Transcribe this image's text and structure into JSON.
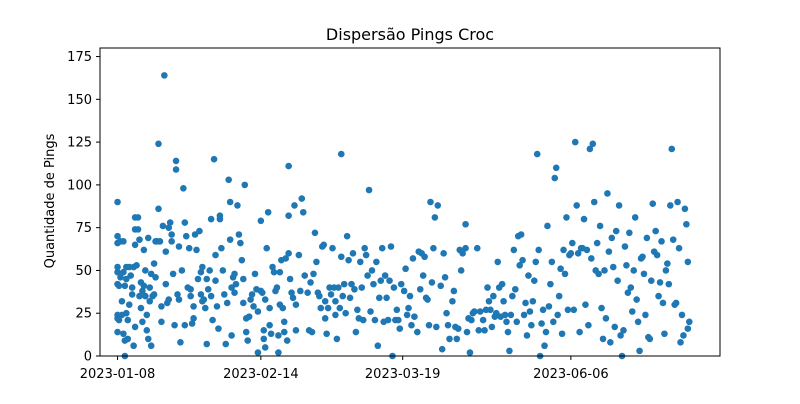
{
  "chart_data": {
    "type": "scatter",
    "title": "Dispersão Pings Croc",
    "xlabel": "",
    "ylabel": "Quantidade de Pings",
    "ylim": [
      0,
      180
    ],
    "yticks": [
      0,
      25,
      50,
      75,
      100,
      125,
      150,
      175
    ],
    "xticks": [
      "2023-01-08",
      "2023-02-14",
      "2023-03-19",
      "2023-06-06"
    ],
    "grid": false,
    "color": "#1f77b4",
    "note": "x positions expressed as index over the plotted sequence (0 to 400), tick labels placed at indices 0, 98, 195, 310",
    "xlim": [
      -12,
      412
    ],
    "xtick_positions": [
      0,
      98,
      195,
      310
    ],
    "points": [
      [
        0,
        90
      ],
      [
        0,
        70
      ],
      [
        0,
        66
      ],
      [
        0,
        52
      ],
      [
        0,
        49
      ],
      [
        0,
        42
      ],
      [
        0,
        24
      ],
      [
        0,
        22
      ],
      [
        0,
        14
      ],
      [
        1,
        41
      ],
      [
        1,
        21
      ],
      [
        2,
        67
      ],
      [
        2,
        46
      ],
      [
        3,
        32
      ],
      [
        3,
        24
      ],
      [
        4,
        67
      ],
      [
        4,
        49
      ],
      [
        4,
        13
      ],
      [
        5,
        0
      ],
      [
        5,
        9
      ],
      [
        5,
        41
      ],
      [
        6,
        25
      ],
      [
        6,
        45
      ],
      [
        6,
        52
      ],
      [
        7,
        21
      ],
      [
        7,
        10
      ],
      [
        8,
        30
      ],
      [
        8,
        52
      ],
      [
        9,
        47
      ],
      [
        10,
        40
      ],
      [
        10,
        36
      ],
      [
        11,
        52
      ],
      [
        11,
        6
      ],
      [
        12,
        81
      ],
      [
        12,
        74
      ],
      [
        12,
        65
      ],
      [
        12,
        17
      ],
      [
        13,
        53
      ],
      [
        14,
        81
      ],
      [
        14,
        74
      ],
      [
        15,
        68
      ],
      [
        15,
        35
      ],
      [
        16,
        43
      ],
      [
        16,
        28
      ],
      [
        17,
        38
      ],
      [
        17,
        20
      ],
      [
        18,
        62
      ],
      [
        18,
        41
      ],
      [
        19,
        50
      ],
      [
        19,
        35
      ],
      [
        20,
        15
      ],
      [
        20,
        24
      ],
      [
        21,
        69
      ],
      [
        21,
        10
      ],
      [
        22,
        32
      ],
      [
        22,
        40
      ],
      [
        23,
        48
      ],
      [
        23,
        6
      ],
      [
        24,
        35
      ],
      [
        25,
        54
      ],
      [
        25,
        36
      ],
      [
        26,
        46
      ],
      [
        26,
        67
      ],
      [
        27,
        67
      ],
      [
        28,
        124
      ],
      [
        28,
        86
      ],
      [
        29,
        67
      ],
      [
        30,
        20
      ],
      [
        30,
        29
      ],
      [
        31,
        76
      ],
      [
        32,
        164
      ],
      [
        33,
        61
      ],
      [
        33,
        42
      ],
      [
        34,
        31
      ],
      [
        35,
        33
      ],
      [
        35,
        75
      ],
      [
        36,
        78
      ],
      [
        37,
        71
      ],
      [
        37,
        67
      ],
      [
        38,
        48
      ],
      [
        39,
        18
      ],
      [
        40,
        109
      ],
      [
        40,
        114
      ],
      [
        41,
        36
      ],
      [
        42,
        33
      ],
      [
        42,
        64
      ],
      [
        43,
        8
      ],
      [
        44,
        50
      ],
      [
        45,
        98
      ],
      [
        46,
        78
      ],
      [
        46,
        18
      ],
      [
        47,
        70
      ],
      [
        48,
        40
      ],
      [
        49,
        63
      ],
      [
        50,
        39
      ],
      [
        50,
        35
      ],
      [
        51,
        19
      ],
      [
        52,
        29
      ],
      [
        52,
        22
      ],
      [
        53,
        71
      ],
      [
        54,
        62
      ],
      [
        55,
        45
      ],
      [
        56,
        73
      ],
      [
        57,
        36
      ],
      [
        57,
        49
      ],
      [
        58,
        32
      ],
      [
        58,
        52
      ],
      [
        59,
        33
      ],
      [
        60,
        28
      ],
      [
        61,
        7
      ],
      [
        61,
        45
      ],
      [
        62,
        39
      ],
      [
        63,
        50
      ],
      [
        64,
        35
      ],
      [
        64,
        80
      ],
      [
        65,
        21
      ],
      [
        66,
        115
      ],
      [
        67,
        59
      ],
      [
        67,
        44
      ],
      [
        68,
        29
      ],
      [
        69,
        16
      ],
      [
        70,
        82
      ],
      [
        70,
        80
      ],
      [
        71,
        63
      ],
      [
        72,
        50
      ],
      [
        73,
        36
      ],
      [
        74,
        7
      ],
      [
        75,
        31
      ],
      [
        76,
        103
      ],
      [
        77,
        90
      ],
      [
        77,
        68
      ],
      [
        78,
        40
      ],
      [
        78,
        12
      ],
      [
        79,
        46
      ],
      [
        80,
        37
      ],
      [
        80,
        48
      ],
      [
        81,
        42
      ],
      [
        82,
        88
      ],
      [
        83,
        71
      ],
      [
        84,
        66
      ],
      [
        85,
        56
      ],
      [
        86,
        45
      ],
      [
        86,
        31
      ],
      [
        87,
        100
      ],
      [
        88,
        22
      ],
      [
        88,
        14
      ],
      [
        89,
        9
      ],
      [
        90,
        23
      ],
      [
        91,
        33
      ],
      [
        92,
        36
      ],
      [
        93,
        29
      ],
      [
        94,
        48
      ],
      [
        95,
        39
      ],
      [
        96,
        2
      ],
      [
        96,
        26
      ],
      [
        98,
        79
      ],
      [
        98,
        38
      ],
      [
        99,
        37
      ],
      [
        100,
        10
      ],
      [
        100,
        15
      ],
      [
        101,
        33
      ],
      [
        101,
        5
      ],
      [
        102,
        63
      ],
      [
        103,
        84
      ],
      [
        104,
        18
      ],
      [
        104,
        28
      ],
      [
        105,
        13
      ],
      [
        106,
        52
      ],
      [
        107,
        49
      ],
      [
        108,
        38
      ],
      [
        109,
        40
      ],
      [
        110,
        2
      ],
      [
        110,
        12
      ],
      [
        111,
        49
      ],
      [
        111,
        30
      ],
      [
        112,
        56
      ],
      [
        113,
        28
      ],
      [
        114,
        20
      ],
      [
        114,
        14
      ],
      [
        115,
        57
      ],
      [
        116,
        9
      ],
      [
        117,
        82
      ],
      [
        117,
        111
      ],
      [
        117,
        60
      ],
      [
        118,
        45
      ],
      [
        119,
        37
      ],
      [
        120,
        34
      ],
      [
        121,
        88
      ],
      [
        122,
        30
      ],
      [
        122,
        15
      ],
      [
        124,
        59
      ],
      [
        125,
        38
      ],
      [
        126,
        92
      ],
      [
        127,
        84
      ],
      [
        128,
        47
      ],
      [
        130,
        37
      ],
      [
        131,
        15
      ],
      [
        132,
        43
      ],
      [
        133,
        14
      ],
      [
        134,
        48
      ],
      [
        135,
        72
      ],
      [
        136,
        55
      ],
      [
        137,
        37
      ],
      [
        138,
        35
      ],
      [
        139,
        28
      ],
      [
        140,
        64
      ],
      [
        141,
        65
      ],
      [
        142,
        22
      ],
      [
        142,
        32
      ],
      [
        143,
        13
      ],
      [
        144,
        28
      ],
      [
        145,
        40
      ],
      [
        146,
        36
      ],
      [
        147,
        63
      ],
      [
        148,
        40
      ],
      [
        149,
        24
      ],
      [
        149,
        32
      ],
      [
        150,
        10
      ],
      [
        151,
        40
      ],
      [
        152,
        28
      ],
      [
        153,
        118
      ],
      [
        153,
        58
      ],
      [
        154,
        35
      ],
      [
        155,
        42
      ],
      [
        156,
        25
      ],
      [
        157,
        70
      ],
      [
        158,
        56
      ],
      [
        159,
        34
      ],
      [
        160,
        42
      ],
      [
        161,
        60
      ],
      [
        162,
        39
      ],
      [
        163,
        14
      ],
      [
        164,
        27
      ],
      [
        165,
        22
      ],
      [
        166,
        55
      ],
      [
        167,
        40
      ],
      [
        168,
        21
      ],
      [
        169,
        63
      ],
      [
        170,
        59
      ],
      [
        171,
        47
      ],
      [
        172,
        97
      ],
      [
        173,
        26
      ],
      [
        174,
        50
      ],
      [
        175,
        42
      ],
      [
        176,
        21
      ],
      [
        177,
        55
      ],
      [
        178,
        6
      ],
      [
        179,
        34
      ],
      [
        180,
        44
      ],
      [
        181,
        63
      ],
      [
        182,
        20
      ],
      [
        183,
        47
      ],
      [
        184,
        34
      ],
      [
        185,
        21
      ],
      [
        186,
        44
      ],
      [
        187,
        64
      ],
      [
        188,
        0
      ],
      [
        189,
        40
      ],
      [
        190,
        21
      ],
      [
        191,
        27
      ],
      [
        192,
        21
      ],
      [
        193,
        16
      ],
      [
        194,
        42
      ],
      [
        196,
        38
      ],
      [
        197,
        51
      ],
      [
        198,
        24
      ],
      [
        199,
        28
      ],
      [
        200,
        35
      ],
      [
        201,
        18
      ],
      [
        202,
        57
      ],
      [
        203,
        23
      ],
      [
        205,
        14
      ],
      [
        206,
        61
      ],
      [
        207,
        39
      ],
      [
        208,
        60
      ],
      [
        209,
        47
      ],
      [
        210,
        58
      ],
      [
        211,
        34
      ],
      [
        212,
        33
      ],
      [
        213,
        18
      ],
      [
        214,
        90
      ],
      [
        215,
        43
      ],
      [
        216,
        63
      ],
      [
        217,
        81
      ],
      [
        218,
        17
      ],
      [
        219,
        88
      ],
      [
        221,
        41
      ],
      [
        222,
        4
      ],
      [
        223,
        60
      ],
      [
        224,
        46
      ],
      [
        225,
        25
      ],
      [
        226,
        18
      ],
      [
        227,
        10
      ],
      [
        229,
        32
      ],
      [
        230,
        38
      ],
      [
        231,
        17
      ],
      [
        232,
        10
      ],
      [
        233,
        16
      ],
      [
        234,
        62
      ],
      [
        235,
        50
      ],
      [
        236,
        60
      ],
      [
        238,
        77
      ],
      [
        238,
        63
      ],
      [
        239,
        14
      ],
      [
        240,
        22
      ],
      [
        241,
        2
      ],
      [
        242,
        21
      ],
      [
        243,
        25
      ],
      [
        244,
        26
      ],
      [
        246,
        63
      ],
      [
        247,
        15
      ],
      [
        248,
        26
      ],
      [
        250,
        21
      ],
      [
        251,
        15
      ],
      [
        252,
        27
      ],
      [
        253,
        40
      ],
      [
        254,
        32
      ],
      [
        255,
        27
      ],
      [
        256,
        17
      ],
      [
        257,
        35
      ],
      [
        258,
        23
      ],
      [
        259,
        25
      ],
      [
        260,
        55
      ],
      [
        261,
        40
      ],
      [
        262,
        23
      ],
      [
        263,
        42
      ],
      [
        264,
        32
      ],
      [
        265,
        24
      ],
      [
        266,
        20
      ],
      [
        267,
        14
      ],
      [
        268,
        3
      ],
      [
        269,
        24
      ],
      [
        270,
        35
      ],
      [
        271,
        62
      ],
      [
        272,
        39
      ],
      [
        273,
        20
      ],
      [
        274,
        70
      ],
      [
        275,
        53
      ],
      [
        276,
        71
      ],
      [
        277,
        56
      ],
      [
        278,
        24
      ],
      [
        279,
        31
      ],
      [
        280,
        12
      ],
      [
        281,
        47
      ],
      [
        282,
        26
      ],
      [
        283,
        18
      ],
      [
        284,
        32
      ],
      [
        285,
        44
      ],
      [
        286,
        55
      ],
      [
        287,
        118
      ],
      [
        288,
        62
      ],
      [
        289,
        0
      ],
      [
        290,
        19
      ],
      [
        291,
        27
      ],
      [
        292,
        6
      ],
      [
        293,
        14
      ],
      [
        294,
        76
      ],
      [
        295,
        29
      ],
      [
        296,
        42
      ],
      [
        297,
        55
      ],
      [
        298,
        20
      ],
      [
        299,
        104
      ],
      [
        300,
        110
      ],
      [
        301,
        24
      ],
      [
        302,
        35
      ],
      [
        303,
        51
      ],
      [
        304,
        13
      ],
      [
        305,
        62
      ],
      [
        306,
        48
      ],
      [
        307,
        81
      ],
      [
        308,
        27
      ],
      [
        309,
        59
      ],
      [
        310,
        60
      ],
      [
        311,
        66
      ],
      [
        312,
        27
      ],
      [
        313,
        125
      ],
      [
        314,
        88
      ],
      [
        315,
        60
      ],
      [
        316,
        14
      ],
      [
        317,
        63
      ],
      [
        318,
        63
      ],
      [
        319,
        80
      ],
      [
        320,
        30
      ],
      [
        321,
        62
      ],
      [
        322,
        18
      ],
      [
        323,
        121
      ],
      [
        324,
        57
      ],
      [
        325,
        124
      ],
      [
        326,
        90
      ],
      [
        327,
        50
      ],
      [
        328,
        66
      ],
      [
        329,
        48
      ],
      [
        330,
        76
      ],
      [
        331,
        28
      ],
      [
        332,
        10
      ],
      [
        333,
        50
      ],
      [
        334,
        22
      ],
      [
        335,
        95
      ],
      [
        336,
        61
      ],
      [
        337,
        8
      ],
      [
        338,
        69
      ],
      [
        339,
        52
      ],
      [
        340,
        17
      ],
      [
        341,
        73
      ],
      [
        342,
        44
      ],
      [
        343,
        88
      ],
      [
        344,
        12
      ],
      [
        345,
        0
      ],
      [
        346,
        15
      ],
      [
        347,
        64
      ],
      [
        348,
        53
      ],
      [
        349,
        37
      ],
      [
        350,
        72
      ],
      [
        351,
        40
      ],
      [
        352,
        26
      ],
      [
        353,
        50
      ],
      [
        354,
        81
      ],
      [
        355,
        33
      ],
      [
        356,
        20
      ],
      [
        357,
        3
      ],
      [
        358,
        57
      ],
      [
        359,
        58
      ],
      [
        360,
        48
      ],
      [
        361,
        24
      ],
      [
        362,
        69
      ],
      [
        363,
        11
      ],
      [
        364,
        10
      ],
      [
        365,
        44
      ],
      [
        366,
        89
      ],
      [
        367,
        61
      ],
      [
        368,
        73
      ],
      [
        369,
        59
      ],
      [
        370,
        35
      ],
      [
        371,
        43
      ],
      [
        372,
        67
      ],
      [
        373,
        31
      ],
      [
        374,
        13
      ],
      [
        375,
        50
      ],
      [
        376,
        54
      ],
      [
        377,
        42
      ],
      [
        378,
        88
      ],
      [
        379,
        121
      ],
      [
        380,
        68
      ],
      [
        381,
        30
      ],
      [
        382,
        31
      ],
      [
        383,
        90
      ],
      [
        384,
        63
      ],
      [
        385,
        8
      ],
      [
        386,
        24
      ],
      [
        387,
        12
      ],
      [
        388,
        86
      ],
      [
        389,
        77
      ],
      [
        390,
        55
      ],
      [
        390,
        16
      ],
      [
        391,
        20
      ]
    ]
  }
}
